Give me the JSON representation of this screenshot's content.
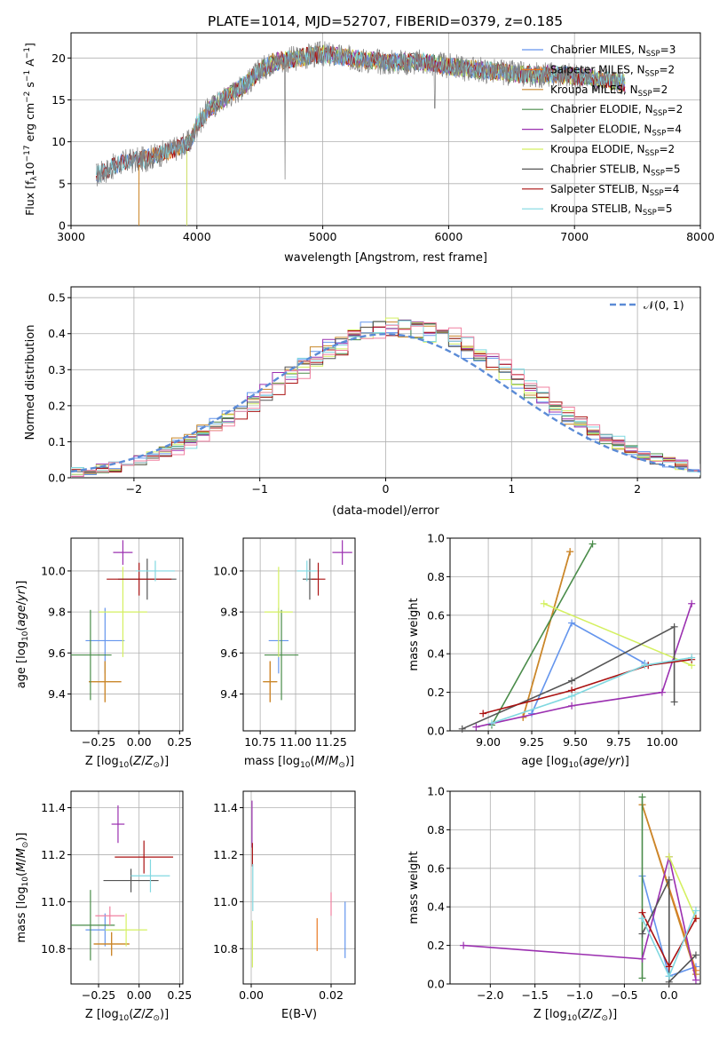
{
  "figure_title": "PLATE=1014, MJD=52707, FIBERID=0379, z=0.185",
  "legend_labels": [
    "Chabrier MILES, N_SSP=3",
    "Salpeter MILES, N_SSP=2",
    "Kroupa MILES, N_SSP=2",
    "Chabrier ELODIE, N_SSP=2",
    "Salpeter ELODIE, N_SSP=4",
    "Kroupa ELODIE, N_SSP=2",
    "Chabrier STELIB, N_SSP=5",
    "Salpeter STELIB, N_SSP=4",
    "Kroupa STELIB, N_SSP=5"
  ],
  "model_colors": [
    "#6495ed",
    "#e87722",
    "#c8882a",
    "#4a8c4a",
    "#9b30b0",
    "#d4f060",
    "#555555",
    "#aa1010",
    "#80d8e0"
  ],
  "chart_data": [
    {
      "type": "line",
      "id": "spectrum",
      "xlabel": "wavelength [Angstrom, rest frame]",
      "ylabel": "Flux [f_λ 10^-17 erg cm^-2 s^-1 A^-1]",
      "xlim": [
        3000,
        8000
      ],
      "ylim": [
        0,
        23
      ],
      "xticks": [
        3000,
        4000,
        5000,
        6000,
        7000,
        8000
      ],
      "yticks": [
        0,
        5,
        10,
        15,
        20
      ],
      "legend_position": "upper right",
      "continuum": {
        "x": [
          3200,
          3400,
          3600,
          3800,
          3950,
          4000,
          4100,
          4200,
          4300,
          4400,
          4500,
          4600,
          4800,
          5000,
          5200,
          5500,
          5800,
          6000,
          6300,
          6600,
          6900,
          7200,
          7400
        ],
        "y": [
          6,
          7.5,
          8,
          9,
          10,
          12,
          14,
          15,
          16,
          17,
          18.5,
          19.5,
          20,
          20.5,
          20,
          19.5,
          19.5,
          19,
          18.5,
          18,
          18,
          17.5,
          17
        ]
      },
      "model_start_wavelengths": [
        3200,
        3540,
        3540,
        3920,
        3920,
        3920,
        3200,
        3200,
        3200
      ]
    },
    {
      "type": "histogram",
      "id": "residuals",
      "xlabel": "(data-model)/error",
      "ylabel": "Normed distribution",
      "xlim": [
        -2.5,
        2.5
      ],
      "ylim": [
        0,
        0.53
      ],
      "xticks": [
        -2,
        -1,
        0,
        1,
        2
      ],
      "yticks": [
        0.0,
        0.1,
        0.2,
        0.3,
        0.4,
        0.5
      ],
      "bin_width": 0.1,
      "reference_curve": "N(0,1)",
      "legend_label": "𝒩(0, 1)",
      "legend_position": "upper right"
    },
    {
      "type": "scatter",
      "id": "age-vs-Z",
      "xlabel": "Z [log10(Z/Z⊙)]",
      "ylabel": "age  [log10(age/yr)]",
      "xlim": [
        -0.42,
        0.27
      ],
      "ylim": [
        9.22,
        10.16
      ],
      "xticks": [
        -0.25,
        0.0,
        0.25
      ],
      "yticks": [
        9.4,
        9.6,
        9.8,
        10.0
      ],
      "points": [
        {
          "c": 0,
          "x": -0.21,
          "y": 9.66,
          "xe": 0.12,
          "ye": 0.16
        },
        {
          "c": 1,
          "x": -0.21,
          "y": 9.46,
          "xe": 0.1,
          "ye": 0.1
        },
        {
          "c": 2,
          "x": -0.21,
          "y": 9.46,
          "xe": 0.1,
          "ye": 0.1
        },
        {
          "c": 3,
          "x": -0.3,
          "y": 9.59,
          "xe": 0.13,
          "ye": 0.22
        },
        {
          "c": 4,
          "x": -0.1,
          "y": 10.09,
          "xe": 0.06,
          "ye": 0.06
        },
        {
          "c": 5,
          "x": -0.1,
          "y": 9.8,
          "xe": 0.15,
          "ye": 0.22
        },
        {
          "c": 6,
          "x": 0.05,
          "y": 9.96,
          "xe": 0.18,
          "ye": 0.1
        },
        {
          "c": 7,
          "x": 0.0,
          "y": 9.96,
          "xe": 0.2,
          "ye": 0.08
        },
        {
          "c": 8,
          "x": 0.1,
          "y": 10.0,
          "xe": 0.12,
          "ye": 0.05
        }
      ]
    },
    {
      "type": "scatter",
      "id": "age-vs-mass",
      "xlabel": "mass [log10(M/M⊙)]",
      "ylabel": "",
      "xlim": [
        10.63,
        11.42
      ],
      "ylim": [
        9.22,
        10.16
      ],
      "xticks": [
        10.75,
        11.0,
        11.25
      ],
      "tick_labels": [
        "10.75",
        "11.00",
        "11.25"
      ],
      "yticks": [
        9.4,
        9.6,
        9.8,
        10.0
      ],
      "points": [
        {
          "c": 0,
          "x": 10.88,
          "y": 9.66,
          "xe": 0.07,
          "ye": 0.16
        },
        {
          "c": 1,
          "x": 10.82,
          "y": 9.46,
          "xe": 0.05,
          "ye": 0.1
        },
        {
          "c": 2,
          "x": 10.82,
          "y": 9.46,
          "xe": 0.05,
          "ye": 0.1
        },
        {
          "c": 3,
          "x": 10.9,
          "y": 9.59,
          "xe": 0.12,
          "ye": 0.22
        },
        {
          "c": 4,
          "x": 11.33,
          "y": 10.09,
          "xe": 0.07,
          "ye": 0.06
        },
        {
          "c": 5,
          "x": 10.88,
          "y": 9.8,
          "xe": 0.1,
          "ye": 0.22
        },
        {
          "c": 6,
          "x": 11.1,
          "y": 9.96,
          "xe": 0.05,
          "ye": 0.1
        },
        {
          "c": 7,
          "x": 11.16,
          "y": 9.96,
          "xe": 0.05,
          "ye": 0.08
        },
        {
          "c": 8,
          "x": 11.08,
          "y": 10.0,
          "xe": 0.07,
          "ye": 0.05
        }
      ]
    },
    {
      "type": "line",
      "id": "mass-weight-vs-age",
      "xlabel": "age  [log10(age/yr)]",
      "ylabel": "mass weight",
      "xlim": [
        8.78,
        10.22
      ],
      "ylim": [
        0,
        1.0
      ],
      "xticks": [
        9.0,
        9.25,
        9.5,
        9.75,
        10.0
      ],
      "yticks": [
        0.0,
        0.2,
        0.4,
        0.6,
        0.8,
        1.0
      ],
      "series": [
        {
          "c": 0,
          "x": [
            9.25,
            9.48,
            9.9
          ],
          "y": [
            0.09,
            0.56,
            0.35
          ]
        },
        {
          "c": 1,
          "x": [
            9.2,
            9.47
          ],
          "y": [
            0.07,
            0.93
          ]
        },
        {
          "c": 2,
          "x": [
            9.2,
            9.47
          ],
          "y": [
            0.07,
            0.93
          ]
        },
        {
          "c": 3,
          "x": [
            9.02,
            9.6
          ],
          "y": [
            0.03,
            0.97
          ]
        },
        {
          "c": 4,
          "x": [
            8.93,
            9.48,
            10.0,
            10.17
          ],
          "y": [
            0.02,
            0.13,
            0.2,
            0.66
          ]
        },
        {
          "c": 5,
          "x": [
            9.32,
            10.17
          ],
          "y": [
            0.66,
            0.34
          ]
        },
        {
          "c": 6,
          "x": [
            8.85,
            9.48,
            10.07,
            10.07
          ],
          "y": [
            0.01,
            0.26,
            0.54,
            0.15
          ]
        },
        {
          "c": 7,
          "x": [
            8.97,
            9.48,
            9.92,
            10.17
          ],
          "y": [
            0.09,
            0.21,
            0.34,
            0.37
          ]
        },
        {
          "c": 8,
          "x": [
            9.02,
            9.48,
            9.9,
            10.17
          ],
          "y": [
            0.04,
            0.18,
            0.34,
            0.38
          ]
        }
      ]
    },
    {
      "type": "scatter",
      "id": "mass-vs-Z",
      "xlabel": "Z [log10(Z/Z⊙)]",
      "ylabel": "mass [log10(M/M⊙)]",
      "xlim": [
        -0.42,
        0.27
      ],
      "ylim": [
        10.65,
        11.47
      ],
      "xticks": [
        -0.25,
        0.0,
        0.25
      ],
      "yticks": [
        10.8,
        11.0,
        11.2,
        11.4
      ],
      "points": [
        {
          "c": 0,
          "x": -0.21,
          "y": 10.88,
          "xe": 0.12,
          "ye": 0.07
        },
        {
          "c": 1,
          "x": -0.17,
          "y": 10.82,
          "xe": 0.11,
          "ye": 0.05
        },
        {
          "c": 2,
          "x": -0.17,
          "y": 10.82,
          "xe": 0.11,
          "ye": 0.05
        },
        {
          "c": 3,
          "x": -0.3,
          "y": 10.9,
          "xe": 0.15,
          "ye": 0.15
        },
        {
          "c": 4,
          "x": -0.13,
          "y": 11.33,
          "xe": 0.04,
          "ye": 0.08
        },
        {
          "c": 5,
          "x": -0.08,
          "y": 10.88,
          "xe": 0.13,
          "ye": 0.07
        },
        {
          "c": 6,
          "x": -0.05,
          "y": 11.09,
          "xe": 0.17,
          "ye": 0.05
        },
        {
          "c": 7,
          "x": 0.03,
          "y": 11.19,
          "xe": 0.18,
          "ye": 0.07
        },
        {
          "c": 8,
          "x": 0.07,
          "y": 11.11,
          "xe": 0.12,
          "ye": 0.07
        },
        {
          "c": 9,
          "x": -0.18,
          "y": 10.94,
          "xe": 0.09,
          "ye": 0.04
        }
      ]
    },
    {
      "type": "scatter",
      "id": "mass-vs-ebv",
      "xlabel": "E(B-V)",
      "ylabel": "",
      "xlim": [
        -0.002,
        0.026
      ],
      "ylim": [
        10.65,
        11.47
      ],
      "xticks": [
        0.0,
        0.02
      ],
      "tick_labels": [
        "0.00",
        "0.02"
      ],
      "yticks": [
        10.8,
        11.0,
        11.2,
        11.4
      ],
      "points": [
        {
          "c": 0,
          "x": 0.0235,
          "y": 10.88,
          "ye": 0.12
        },
        {
          "c": 1,
          "x": 0.0165,
          "y": 10.86,
          "ye": 0.07
        },
        {
          "c": 4,
          "x": 0.0002,
          "y": 11.33,
          "ye": 0.1
        },
        {
          "c": 5,
          "x": 0.0003,
          "y": 10.82,
          "ye": 0.1
        },
        {
          "c": 7,
          "x": 0.0003,
          "y": 11.2,
          "ye": 0.05
        },
        {
          "c": 8,
          "x": 0.0004,
          "y": 11.06,
          "ye": 0.1
        },
        {
          "c": 9,
          "x": 0.02,
          "y": 10.99,
          "ye": 0.05
        }
      ]
    },
    {
      "type": "line",
      "id": "mass-weight-vs-Z",
      "xlabel": "Z [log10(Z/Z⊙)]",
      "ylabel": "mass weight",
      "xlim": [
        -2.45,
        0.35
      ],
      "ylim": [
        0,
        1.0
      ],
      "xticks": [
        -2.0,
        -1.5,
        -1.0,
        -0.5,
        0.0
      ],
      "yticks": [
        0.0,
        0.2,
        0.4,
        0.6,
        0.8,
        1.0
      ],
      "series": [
        {
          "c": 0,
          "x": [
            -0.3,
            0.0,
            0.3
          ],
          "y": [
            0.56,
            0.04,
            0.09
          ]
        },
        {
          "c": 1,
          "x": [
            -0.3,
            0.3
          ],
          "y": [
            0.93,
            0.07
          ]
        },
        {
          "c": 2,
          "x": [
            -0.3,
            0.3
          ],
          "y": [
            0.93,
            0.05
          ]
        },
        {
          "c": 3,
          "x": [
            -0.3,
            -0.3
          ],
          "y": [
            0.97,
            0.03
          ]
        },
        {
          "c": 4,
          "x": [
            -2.3,
            -0.3,
            0.0,
            0.3
          ],
          "y": [
            0.2,
            0.13,
            0.66,
            0.02
          ]
        },
        {
          "c": 5,
          "x": [
            0.0,
            0.3
          ],
          "y": [
            0.66,
            0.34
          ]
        },
        {
          "c": 6,
          "x": [
            -0.3,
            0.0,
            0.0,
            0.3
          ],
          "y": [
            0.26,
            0.54,
            0.01,
            0.15
          ]
        },
        {
          "c": 7,
          "x": [
            -0.3,
            0.0,
            0.3
          ],
          "y": [
            0.37,
            0.09,
            0.34
          ]
        },
        {
          "c": 8,
          "x": [
            -0.3,
            0.0,
            0.3
          ],
          "y": [
            0.34,
            0.04,
            0.38
          ]
        }
      ]
    }
  ]
}
